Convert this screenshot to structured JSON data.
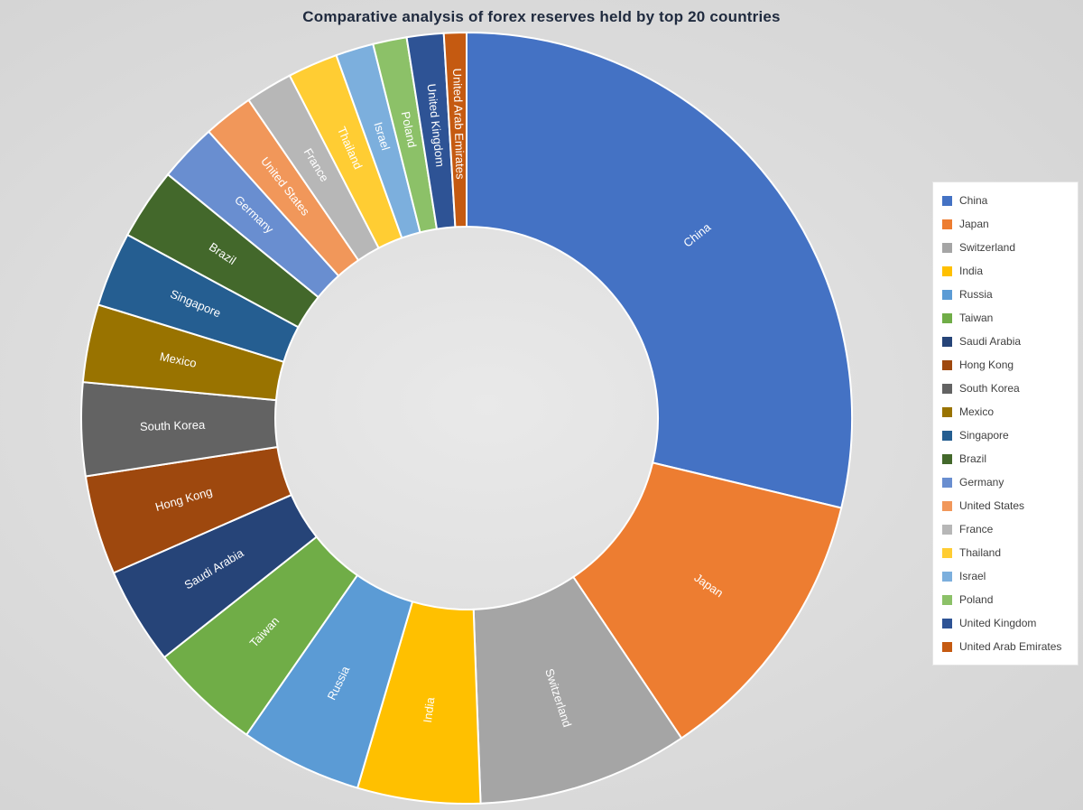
{
  "chart_data": {
    "type": "pie",
    "subtype": "donut",
    "title": "Comparative analysis of forex reserves held by top 20 countries",
    "legend_position": "right",
    "labels_on_slices": true,
    "label_color": "#ffffff",
    "slice_border_color": "#ffffff",
    "background_color": "#dcdcdc",
    "note": "values estimated from arc angles, approximate US$ billions",
    "categories": [
      "China",
      "Japan",
      "Switzerland",
      "India",
      "Russia",
      "Taiwan",
      "Saudi Arabia",
      "Hong Kong",
      "South Korea",
      "Mexico",
      "Singapore",
      "Brazil",
      "Germany",
      "United States",
      "France",
      "Thailand",
      "Israel",
      "Poland",
      "United Kingdom",
      "United Arab Emirates"
    ],
    "values": [
      3350,
      1380,
      1030,
      600,
      595,
      545,
      475,
      485,
      455,
      380,
      365,
      350,
      285,
      245,
      230,
      245,
      185,
      165,
      180,
      110
    ],
    "colors": [
      "#4472C4",
      "#ED7D31",
      "#A5A5A5",
      "#FFC000",
      "#5B9BD5",
      "#70AD47",
      "#264478",
      "#9E480E",
      "#636363",
      "#997300",
      "#255E91",
      "#43682B",
      "#698ED0",
      "#F1975A",
      "#B7B7B7",
      "#FFCD33",
      "#7CAFDD",
      "#8CC168",
      "#2E5395",
      "#C55A11"
    ]
  }
}
